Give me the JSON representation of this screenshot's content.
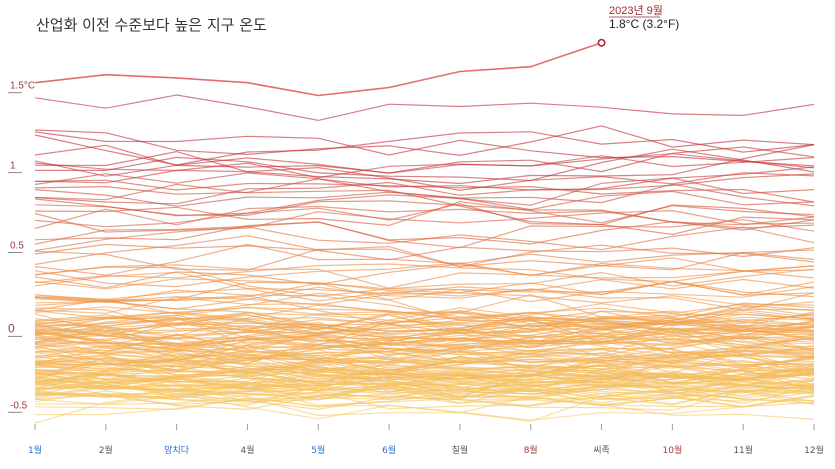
{
  "chart_data": {
    "type": "line",
    "title": "산업화 이전 수준보다 높은 지구 온도",
    "xlabel": "",
    "ylabel": "",
    "months": [
      "1월",
      "2월",
      "망치다",
      "4월",
      "5월",
      "6월",
      "칠월",
      "8월",
      "씨족",
      "10월",
      "11월",
      "12월"
    ],
    "month_colors": [
      "#2a6fc9",
      "#555555",
      "#2a6fc9",
      "#555555",
      "#2a6fc9",
      "#2a6fc9",
      "#555555",
      "#a33a3a",
      "#555555",
      "#a33a3a",
      "#555555",
      "#555555"
    ],
    "yticks": [
      {
        "label": "1.5°C",
        "value": 1.5
      },
      {
        "label": "1",
        "value": 1.0
      },
      {
        "label": "0.5",
        "value": 0.5
      },
      {
        "label": "0",
        "value": 0.0
      },
      {
        "label": "-0.5",
        "value": -0.5
      }
    ],
    "ylim": [
      -0.78,
      1.88
    ],
    "grid": false,
    "color_scale": {
      "low": "#f7cf6a",
      "mid": "#ee8f45",
      "high": "#c0303a"
    },
    "series_count": 174,
    "series_start_year": 1850,
    "series_levels": [
      -0.35,
      -0.28,
      -0.3,
      -0.32,
      -0.25,
      -0.3,
      -0.42,
      -0.35,
      -0.4,
      -0.3,
      -0.3,
      -0.45,
      -0.38,
      -0.42,
      -0.5,
      -0.3,
      -0.32,
      -0.35,
      -0.3,
      -0.2,
      -0.3,
      -0.35,
      -0.3,
      -0.32,
      -0.38,
      -0.42,
      -0.38,
      -0.1,
      -0.12,
      -0.25,
      -0.2,
      -0.22,
      -0.2,
      -0.3,
      -0.38,
      -0.35,
      -0.32,
      -0.4,
      -0.32,
      -0.18,
      -0.42,
      -0.3,
      -0.38,
      -0.4,
      -0.38,
      -0.32,
      -0.22,
      -0.2,
      -0.25,
      -0.35,
      -0.15,
      -0.18,
      -0.25,
      -0.22,
      -0.3,
      -0.35,
      -0.15,
      -0.02,
      -0.05,
      -0.12,
      -0.18,
      -0.32,
      -0.38,
      -0.4,
      -0.48,
      -0.36,
      -0.22,
      -0.4,
      -0.28,
      -0.3,
      -0.3,
      -0.25,
      -0.22,
      -0.25,
      -0.28,
      -0.2,
      -0.05,
      -0.15,
      -0.2,
      -0.3,
      -0.05,
      -0.02,
      -0.08,
      -0.2,
      -0.05,
      -0.15,
      -0.1,
      0.02,
      0.0,
      -0.04,
      0.05,
      0.12,
      0.12,
      0.05,
      0.15,
      -0.05,
      -0.15,
      -0.1,
      -0.05,
      -0.1,
      -0.18,
      -0.05,
      0.02,
      0.05,
      -0.08,
      -0.12,
      -0.05,
      0.0,
      0.05,
      0.05,
      -0.02,
      0.0,
      0.0,
      0.02,
      0.02,
      -0.1,
      -0.02,
      0.02,
      -0.15,
      -0.02,
      -0.1,
      0.05,
      0.02,
      0.12,
      -0.12,
      -0.05,
      -0.15,
      0.08,
      0.0,
      0.12,
      0.2,
      0.28,
      0.1,
      0.28,
      0.12,
      0.08,
      0.22,
      0.32,
      0.3,
      0.28,
      0.45,
      0.38,
      0.22,
      0.26,
      0.35,
      0.45,
      0.32,
      0.55,
      0.6,
      0.45,
      0.55,
      0.7,
      0.65,
      0.68,
      0.72,
      0.8,
      0.65,
      0.85,
      0.95,
      0.75,
      0.78,
      0.88,
      0.9,
      0.88,
      1.0,
      1.2,
      1.15,
      1.05,
      1.05,
      1.0,
      1.15,
      0.95,
      1.05,
      1.4
    ],
    "highlight": {
      "label": "2023년 9월",
      "value_label": "1.8°C (3.2°F)",
      "month_index": 8,
      "values": [
        1.55,
        1.6,
        1.58,
        1.55,
        1.47,
        1.52,
        1.62,
        1.65,
        1.8
      ]
    }
  }
}
